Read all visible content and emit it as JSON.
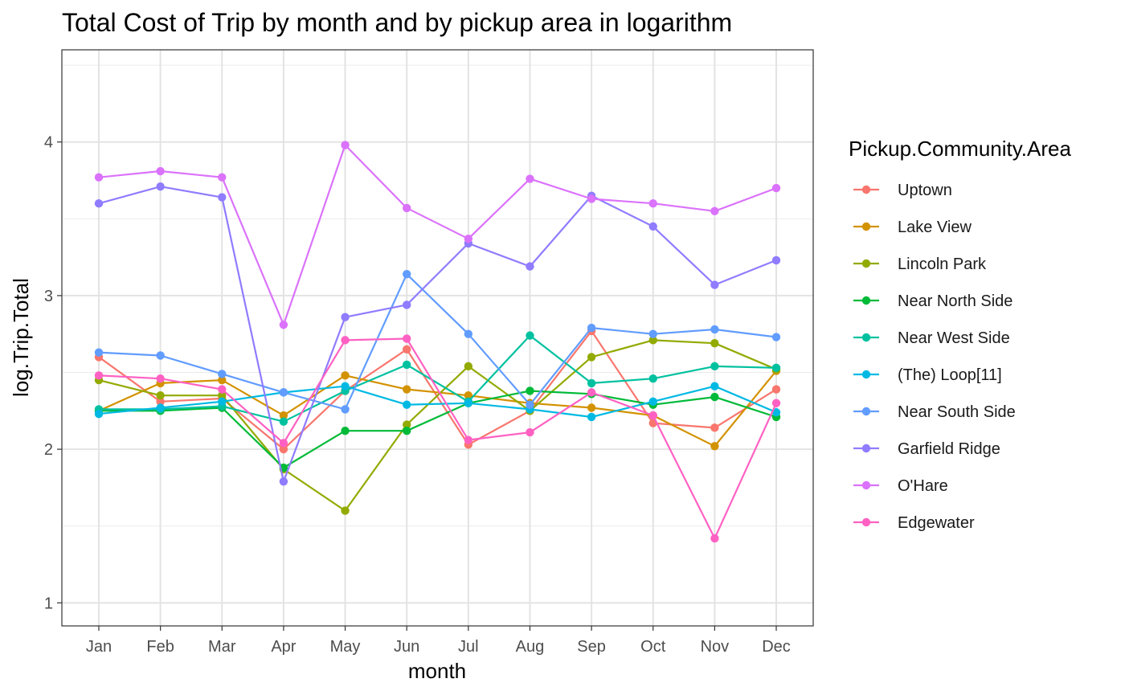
{
  "chart_data": {
    "type": "line",
    "title": "Total Cost of Trip by month and by pickup area in logarithm",
    "xlabel": "month",
    "ylabel": "log.Trip.Total",
    "categories": [
      "Jan",
      "Feb",
      "Mar",
      "Apr",
      "May",
      "Jun",
      "Jul",
      "Aug",
      "Sep",
      "Oct",
      "Nov",
      "Dec"
    ],
    "ylim": [
      0.85,
      4.6
    ],
    "yticks": [
      1,
      2,
      3,
      4
    ],
    "grid": true,
    "legend": {
      "title": "Pickup.Community.Area",
      "position": "right"
    },
    "series": [
      {
        "name": "Uptown",
        "color": "#F8766D",
        "values": [
          2.6,
          2.31,
          2.33,
          2.0,
          2.38,
          2.65,
          2.03,
          2.25,
          2.77,
          2.17,
          2.14,
          2.39
        ]
      },
      {
        "name": "Lake View",
        "color": "#D39200",
        "values": [
          2.25,
          2.43,
          2.45,
          2.22,
          2.48,
          2.39,
          2.35,
          2.3,
          2.27,
          2.22,
          2.02,
          2.51
        ]
      },
      {
        "name": "Lincoln Park",
        "color": "#93AA00",
        "values": [
          2.45,
          2.35,
          2.35,
          1.87,
          1.6,
          2.16,
          2.54,
          2.25,
          2.6,
          2.71,
          2.69,
          2.52
        ]
      },
      {
        "name": "Near North Side",
        "color": "#00BA38",
        "values": [
          2.25,
          2.25,
          2.27,
          1.88,
          2.12,
          2.12,
          2.3,
          2.38,
          2.36,
          2.29,
          2.34,
          2.21
        ]
      },
      {
        "name": "Near West Side",
        "color": "#00C19F",
        "values": [
          2.26,
          2.26,
          2.28,
          2.18,
          2.38,
          2.55,
          2.31,
          2.74,
          2.43,
          2.46,
          2.54,
          2.53
        ]
      },
      {
        "name": "(The)  Loop[11]",
        "color": "#00B9E3",
        "values": [
          2.23,
          2.27,
          2.31,
          2.37,
          2.41,
          2.29,
          2.3,
          2.26,
          2.21,
          2.31,
          2.41,
          2.24
        ]
      },
      {
        "name": "Near South Side",
        "color": "#619CFF",
        "values": [
          2.63,
          2.61,
          2.49,
          2.37,
          2.26,
          3.14,
          2.75,
          2.29,
          2.79,
          2.75,
          2.78,
          2.73
        ]
      },
      {
        "name": "Garfield Ridge",
        "color": "#8F7CFF",
        "values": [
          3.6,
          3.71,
          3.64,
          1.79,
          2.86,
          2.94,
          3.34,
          3.19,
          3.65,
          3.45,
          3.07,
          3.23
        ]
      },
      {
        "name": "O'Hare",
        "color": "#DB72FB",
        "values": [
          3.77,
          3.81,
          3.77,
          2.81,
          3.98,
          3.57,
          3.37,
          3.76,
          3.63,
          3.6,
          3.55,
          3.7
        ]
      },
      {
        "name": "Edgewater",
        "color": "#FF61C3",
        "values": [
          2.48,
          2.46,
          2.39,
          2.04,
          2.71,
          2.72,
          2.06,
          2.11,
          2.37,
          2.22,
          1.42,
          2.3
        ]
      }
    ]
  }
}
